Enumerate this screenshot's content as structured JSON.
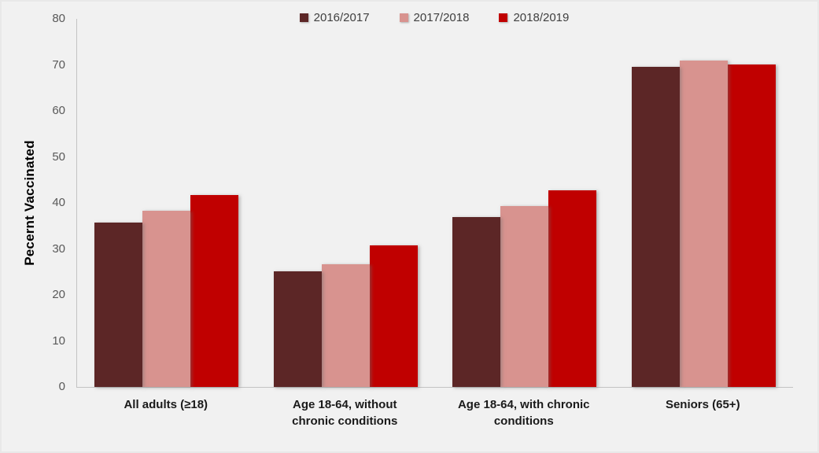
{
  "chart_data": {
    "type": "bar",
    "title": "",
    "xlabel": "",
    "ylabel": "Pecernt Vaccinated",
    "categories": [
      "All adults (≥18)",
      "Age 18-64, without chronic conditions",
      "Age 18-64, with chronic conditions",
      "Seniors (65+)"
    ],
    "series": [
      {
        "name": "2016/2017",
        "color": "#5c2626",
        "values": [
          35.7,
          25.2,
          37.0,
          69.6
        ]
      },
      {
        "name": "2017/2018",
        "color": "#d8938f",
        "values": [
          38.3,
          26.6,
          39.3,
          70.9
        ]
      },
      {
        "name": "2018/2019",
        "color": "#c00000",
        "values": [
          41.7,
          30.8,
          42.7,
          70.0
        ]
      }
    ],
    "ylim": [
      0,
      80
    ],
    "yticks": [
      0,
      10,
      20,
      30,
      40,
      50,
      60,
      70,
      80
    ],
    "grid": false,
    "legend_position": "top"
  },
  "palette": {
    "background": "#f1f1f1",
    "axis_line": "#c3c3c3",
    "tick_label_color": "#595959",
    "category_label_color": "#1a1a1a",
    "legend_text_color": "#3f3f3f"
  }
}
